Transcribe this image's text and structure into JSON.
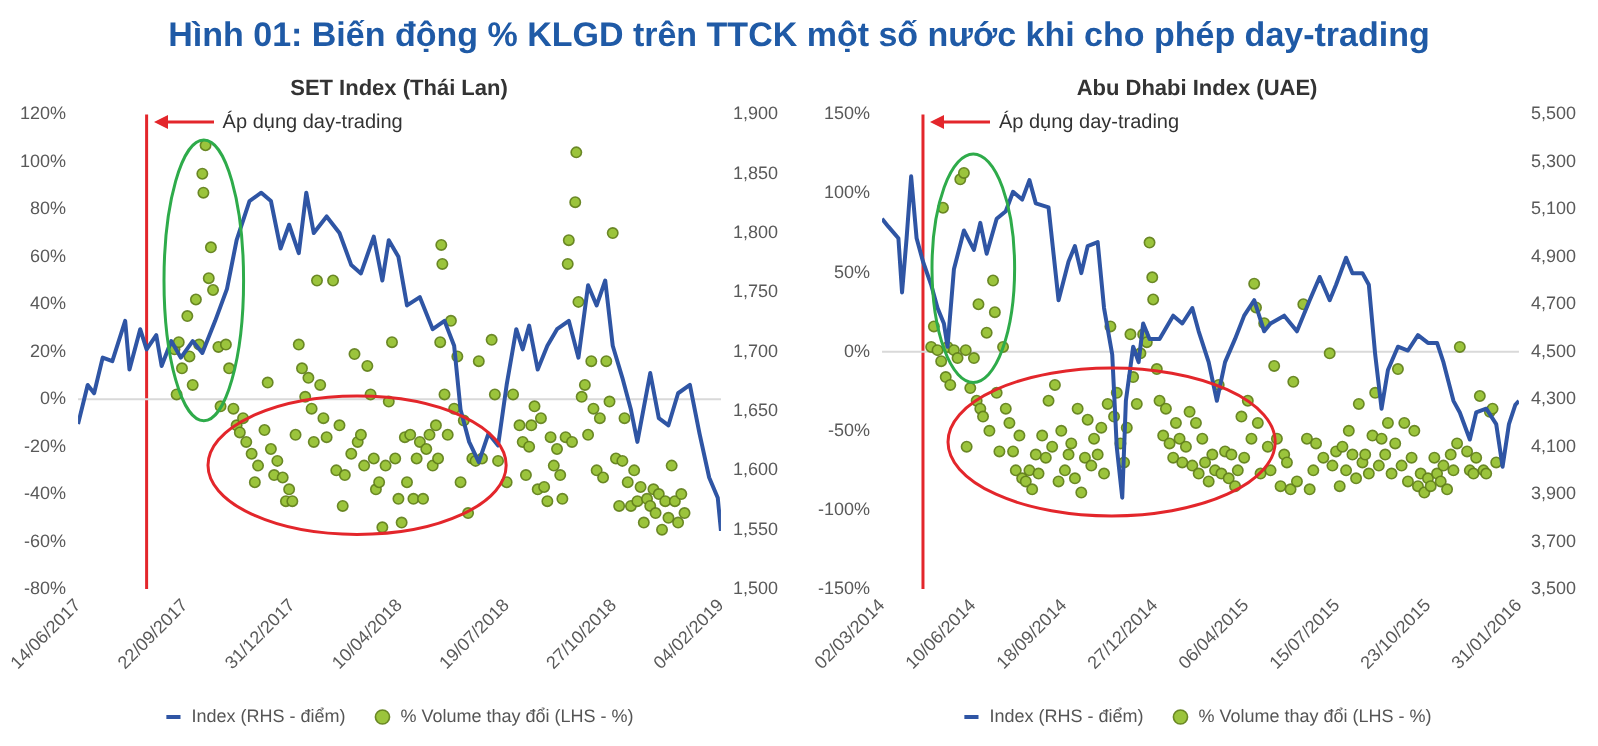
{
  "chart_data": [
    {
      "type": "other",
      "title": "Hình 01: Biến động % KLGD trên TTCK một số nước khi cho phép day-trading"
    },
    {
      "type": "line",
      "title": "SET Index (Thái Lan)",
      "legend": "bottom",
      "grid": false,
      "xlim": [
        "2017-06-14",
        "2019-02-04"
      ],
      "xticks": [
        {
          "value": "2017-06-14",
          "label": "14/06/2017"
        },
        {
          "value": "2017-09-22",
          "label": "22/09/2017"
        },
        {
          "value": "2017-12-31",
          "label": "31/12/2017"
        },
        {
          "value": "2018-04-10",
          "label": "10/04/2018"
        },
        {
          "value": "2018-07-19",
          "label": "19/07/2018"
        },
        {
          "value": "2018-10-27",
          "label": "27/10/2018"
        },
        {
          "value": "2019-02-04",
          "label": "04/02/2019"
        }
      ],
      "ylim": [
        -80,
        120
      ],
      "yticks": [
        {
          "value": -80,
          "label": "-80%"
        },
        {
          "value": -60,
          "label": "-60%"
        },
        {
          "value": -40,
          "label": "-40%"
        },
        {
          "value": -20,
          "label": "-20%"
        },
        {
          "value": 0,
          "label": "0%"
        },
        {
          "value": 20,
          "label": "20%"
        },
        {
          "value": 40,
          "label": "40%"
        },
        {
          "value": 60,
          "label": "60%"
        },
        {
          "value": 80,
          "label": "80%"
        },
        {
          "value": 100,
          "label": "100%"
        },
        {
          "value": 120,
          "label": "120%"
        }
      ],
      "y2lim": [
        1500,
        1900
      ],
      "y2ticks": [
        {
          "value": 1500,
          "label": "1,500"
        },
        {
          "value": 1550,
          "label": "1,550"
        },
        {
          "value": 1600,
          "label": "1,600"
        },
        {
          "value": 1650,
          "label": "1,650"
        },
        {
          "value": 1700,
          "label": "1,700"
        },
        {
          "value": 1750,
          "label": "1,750"
        },
        {
          "value": 1800,
          "label": "1,800"
        },
        {
          "value": 1850,
          "label": "1,850"
        },
        {
          "value": 1900,
          "label": "1,900"
        }
      ],
      "ref_lines": [
        {
          "axis": "x",
          "value": "2017-08-17",
          "label": "Áp dụng day-trading",
          "color": "#e3262b"
        },
        {
          "axis": "y",
          "value": 0,
          "color": "#d9d9d9"
        }
      ],
      "series": [
        {
          "name": "Index (RHS - điểm)",
          "type": "line",
          "axis": "y2",
          "color": "#2f55a4",
          "marker": "none",
          "x": [
            "2017-06-14",
            "2017-06-23",
            "2017-06-29",
            "2017-07-07",
            "2017-07-16",
            "2017-07-28",
            "2017-08-01",
            "2017-08-11",
            "2017-08-17",
            "2017-08-26",
            "2017-08-31",
            "2017-09-09",
            "2017-09-18",
            "2017-09-29",
            "2017-10-08",
            "2017-10-20",
            "2017-10-31",
            "2017-11-09",
            "2017-11-21",
            "2017-12-02",
            "2017-12-11",
            "2017-12-20",
            "2017-12-28",
            "2018-01-06",
            "2018-01-13",
            "2018-01-20",
            "2018-02-01",
            "2018-02-13",
            "2018-02-24",
            "2018-03-05",
            "2018-03-17",
            "2018-03-25",
            "2018-03-31",
            "2018-04-09",
            "2018-04-17",
            "2018-04-29",
            "2018-05-11",
            "2018-05-22",
            "2018-05-31",
            "2018-06-06",
            "2018-06-14",
            "2018-06-23",
            "2018-07-02",
            "2018-07-11",
            "2018-07-19",
            "2018-07-28",
            "2018-08-03",
            "2018-08-09",
            "2018-08-17",
            "2018-08-26",
            "2018-09-04",
            "2018-09-15",
            "2018-09-24",
            "2018-10-03",
            "2018-10-11",
            "2018-10-19",
            "2018-10-26",
            "2018-11-04",
            "2018-11-12",
            "2018-11-18",
            "2018-11-30",
            "2018-12-08",
            "2018-12-17",
            "2018-12-26",
            "2019-01-06",
            "2019-01-15",
            "2019-01-24",
            "2019-02-01",
            "2019-02-04"
          ],
          "values": [
            1639,
            1672,
            1665,
            1695,
            1692,
            1726,
            1685,
            1719,
            1702,
            1714,
            1688,
            1709,
            1695,
            1709,
            1699,
            1726,
            1753,
            1794,
            1827,
            1834,
            1827,
            1787,
            1807,
            1783,
            1834,
            1800,
            1814,
            1800,
            1773,
            1766,
            1797,
            1760,
            1794,
            1780,
            1739,
            1746,
            1719,
            1726,
            1705,
            1651,
            1624,
            1607,
            1631,
            1621,
            1672,
            1719,
            1702,
            1722,
            1685,
            1705,
            1719,
            1726,
            1695,
            1756,
            1739,
            1760,
            1705,
            1678,
            1651,
            1624,
            1682,
            1644,
            1638,
            1665,
            1672,
            1631,
            1594,
            1577,
            1549
          ]
        },
        {
          "name": "% Volume thay đổi (LHS - %)",
          "type": "scatter",
          "axis": "y",
          "color": "#9bc43c",
          "marker": "circle",
          "x": [
            "2017-09-12",
            "2017-09-14",
            "2017-09-16",
            "2017-09-19",
            "2017-09-24",
            "2017-09-26",
            "2017-09-29",
            "2017-10-02",
            "2017-10-05",
            "2017-10-08",
            "2017-10-09",
            "2017-10-11",
            "2017-10-14",
            "2017-10-16",
            "2017-10-18",
            "2017-10-23",
            "2017-10-25",
            "2017-10-30",
            "2017-11-02",
            "2017-11-06",
            "2017-11-09",
            "2017-11-12",
            "2017-11-15",
            "2017-11-18",
            "2017-11-23",
            "2017-11-26",
            "2017-11-29",
            "2017-12-05",
            "2017-12-08",
            "2017-12-11",
            "2017-12-14",
            "2017-12-17",
            "2017-12-22",
            "2017-12-25",
            "2017-12-28",
            "2017-12-31",
            "2018-01-03",
            "2018-01-06",
            "2018-01-09",
            "2018-01-12",
            "2018-01-15",
            "2018-01-18",
            "2018-01-20",
            "2018-01-23",
            "2018-01-26",
            "2018-01-29",
            "2018-02-01",
            "2018-02-07",
            "2018-02-10",
            "2018-02-13",
            "2018-02-16",
            "2018-02-18",
            "2018-02-24",
            "2018-02-27",
            "2018-03-02",
            "2018-03-05",
            "2018-03-08",
            "2018-03-11",
            "2018-03-14",
            "2018-03-17",
            "2018-03-19",
            "2018-03-22",
            "2018-03-25",
            "2018-03-28",
            "2018-03-31",
            "2018-04-03",
            "2018-04-06",
            "2018-04-09",
            "2018-04-12",
            "2018-04-15",
            "2018-04-17",
            "2018-04-20",
            "2018-04-23",
            "2018-04-26",
            "2018-04-29",
            "2018-05-02",
            "2018-05-05",
            "2018-05-08",
            "2018-05-11",
            "2018-05-14",
            "2018-05-16",
            "2018-05-18",
            "2018-05-19",
            "2018-05-20",
            "2018-05-22",
            "2018-05-25",
            "2018-05-28",
            "2018-05-31",
            "2018-06-03",
            "2018-06-06",
            "2018-06-09",
            "2018-06-13",
            "2018-06-17",
            "2018-06-20",
            "2018-06-23",
            "2018-06-26",
            "2018-07-05",
            "2018-07-08",
            "2018-07-11",
            "2018-07-19",
            "2018-07-25",
            "2018-07-31",
            "2018-08-03",
            "2018-08-06",
            "2018-08-09",
            "2018-08-11",
            "2018-08-14",
            "2018-08-17",
            "2018-08-20",
            "2018-08-23",
            "2018-08-26",
            "2018-08-29",
            "2018-09-01",
            "2018-09-04",
            "2018-09-07",
            "2018-09-09",
            "2018-09-12",
            "2018-09-14",
            "2018-09-15",
            "2018-09-18",
            "2018-09-21",
            "2018-09-22",
            "2018-09-24",
            "2018-09-27",
            "2018-09-30",
            "2018-10-03",
            "2018-10-06",
            "2018-10-08",
            "2018-10-11",
            "2018-10-14",
            "2018-10-17",
            "2018-10-20",
            "2018-10-23",
            "2018-10-26",
            "2018-10-29",
            "2018-11-01",
            "2018-11-04",
            "2018-11-06",
            "2018-11-09",
            "2018-11-12",
            "2018-11-15",
            "2018-11-18",
            "2018-11-21",
            "2018-11-24",
            "2018-11-27",
            "2018-11-30",
            "2018-12-03",
            "2018-12-05",
            "2018-12-08",
            "2018-12-11",
            "2018-12-14",
            "2018-12-17",
            "2018-12-20",
            "2018-12-23",
            "2018-12-26",
            "2018-12-29",
            "2019-01-01"
          ],
          "values": [
            21,
            2,
            24,
            13,
            35,
            18,
            6,
            42,
            23,
            95,
            87,
            107,
            51,
            64,
            46,
            22,
            -3,
            23,
            13,
            -4,
            -11,
            -14,
            -8,
            -18,
            -23,
            -35,
            -28,
            -13,
            7,
            -21,
            -32,
            -26,
            -33,
            -43,
            -38,
            -43,
            -15,
            23,
            13,
            1,
            9,
            -4,
            -18,
            50,
            6,
            -8,
            -16,
            50,
            -30,
            -11,
            -45,
            -32,
            -23,
            19,
            -18,
            -15,
            -28,
            14,
            2,
            -25,
            -38,
            -35,
            -54,
            -28,
            -1,
            24,
            -25,
            -42,
            -52,
            -16,
            -35,
            -15,
            -42,
            -25,
            -18,
            -42,
            -21,
            -15,
            -28,
            -11,
            -25,
            24,
            65,
            57,
            2,
            -15,
            33,
            -4,
            18,
            -35,
            -9,
            -48,
            -25,
            -26,
            16,
            -25,
            25,
            2,
            -26,
            -35,
            2,
            -11,
            -18,
            -32,
            -20,
            -11,
            -3,
            -38,
            -8,
            -37,
            -43,
            -16,
            -28,
            -21,
            -32,
            -42,
            -16,
            57,
            67,
            -18,
            83,
            104,
            41,
            1,
            6,
            -15,
            16,
            -4,
            -30,
            -8,
            -33,
            16,
            -1,
            70,
            -25,
            -45,
            -26,
            -8,
            -35,
            -45,
            -30,
            -43,
            -37,
            -52,
            -42,
            -45,
            -38,
            -48,
            -40,
            -55,
            -43,
            -50,
            -28,
            -43,
            -52,
            -40,
            -48
          ]
        }
      ]
    },
    {
      "type": "line",
      "title": "Abu Dhabi Index (UAE)",
      "legend": "bottom",
      "grid": false,
      "xlim": [
        "2014-03-02",
        "2016-01-31"
      ],
      "xticks": [
        {
          "value": "2014-03-02",
          "label": "02/03/2014"
        },
        {
          "value": "2014-06-10",
          "label": "10/06/2014"
        },
        {
          "value": "2014-09-18",
          "label": "18/09/2014"
        },
        {
          "value": "2014-12-27",
          "label": "27/12/2014"
        },
        {
          "value": "2015-04-06",
          "label": "06/04/2015"
        },
        {
          "value": "2015-07-15",
          "label": "15/07/2015"
        },
        {
          "value": "2015-10-23",
          "label": "23/10/2015"
        },
        {
          "value": "2016-01-31",
          "label": "31/01/2016"
        }
      ],
      "ylim": [
        -150,
        150
      ],
      "yticks": [
        {
          "value": -150,
          "label": "-150%"
        },
        {
          "value": -100,
          "label": "-100%"
        },
        {
          "value": -50,
          "label": "-50%"
        },
        {
          "value": 0,
          "label": "0%"
        },
        {
          "value": 50,
          "label": "50%"
        },
        {
          "value": 100,
          "label": "100%"
        },
        {
          "value": 150,
          "label": "150%"
        }
      ],
      "y2lim": [
        3500,
        5500
      ],
      "y2ticks": [
        {
          "value": 3500,
          "label": "3,500"
        },
        {
          "value": 3700,
          "label": "3,700"
        },
        {
          "value": 3900,
          "label": "3,900"
        },
        {
          "value": 4100,
          "label": "4,100"
        },
        {
          "value": 4300,
          "label": "4,300"
        },
        {
          "value": 4500,
          "label": "4,500"
        },
        {
          "value": 4700,
          "label": "4,700"
        },
        {
          "value": 4900,
          "label": "4,900"
        },
        {
          "value": 5100,
          "label": "5,100"
        },
        {
          "value": 5300,
          "label": "5,300"
        },
        {
          "value": 5500,
          "label": "5,500"
        }
      ],
      "ref_lines": [
        {
          "axis": "x",
          "value": "2014-04-16",
          "label": "Áp dụng day-trading",
          "color": "#e3262b"
        },
        {
          "axis": "y",
          "value": 0,
          "color": "#d9d9d9"
        }
      ],
      "series": [
        {
          "name": "Index (RHS - điểm)",
          "type": "line",
          "axis": "y2",
          "color": "#2f55a4",
          "marker": "none",
          "x": [
            "2014-03-02",
            "2014-03-09",
            "2014-03-20",
            "2014-03-24",
            "2014-03-29",
            "2014-04-03",
            "2014-04-09",
            "2014-04-16",
            "2014-04-25",
            "2014-05-02",
            "2014-05-09",
            "2014-05-13",
            "2014-05-20",
            "2014-05-31",
            "2014-06-11",
            "2014-06-18",
            "2014-06-25",
            "2014-07-06",
            "2014-07-16",
            "2014-07-24",
            "2014-08-03",
            "2014-08-11",
            "2014-08-18",
            "2014-09-01",
            "2014-09-12",
            "2014-09-23",
            "2014-09-30",
            "2014-10-07",
            "2014-10-14",
            "2014-10-25",
            "2014-11-01",
            "2014-11-10",
            "2014-11-15",
            "2014-11-21",
            "2014-11-25",
            "2014-12-03",
            "2014-12-09",
            "2014-12-14",
            "2014-12-21",
            "2015-01-01",
            "2015-01-16",
            "2015-01-26",
            "2015-02-06",
            "2015-02-13",
            "2015-02-24",
            "2015-03-05",
            "2015-03-14",
            "2015-03-25",
            "2015-04-04",
            "2015-04-15",
            "2015-04-26",
            "2015-05-03",
            "2015-05-18",
            "2015-06-01",
            "2015-06-15",
            "2015-06-26",
            "2015-07-07",
            "2015-07-14",
            "2015-07-25",
            "2015-08-01",
            "2015-08-12",
            "2015-08-19",
            "2015-08-26",
            "2015-09-02",
            "2015-09-09",
            "2015-09-20",
            "2015-10-01",
            "2015-10-12",
            "2015-10-23",
            "2015-11-02",
            "2015-11-09",
            "2015-11-20",
            "2015-11-27",
            "2015-12-08",
            "2015-12-15",
            "2015-12-26",
            "2016-01-06",
            "2016-01-13",
            "2016-01-20",
            "2016-01-27",
            "2016-01-31"
          ],
          "values": [
            5060,
            5027,
            4978,
            4750,
            4978,
            5239,
            4978,
            4880,
            4782,
            4684,
            4619,
            4521,
            4847,
            5011,
            4929,
            5043,
            4913,
            5060,
            5092,
            5174,
            5141,
            5223,
            5125,
            5108,
            4717,
            4880,
            4945,
            4831,
            4945,
            4962,
            4684,
            4488,
            4097,
            3885,
            4293,
            4521,
            4456,
            4619,
            4554,
            4554,
            4652,
            4619,
            4684,
            4586,
            4456,
            4293,
            4456,
            4554,
            4652,
            4717,
            4586,
            4619,
            4652,
            4586,
            4717,
            4815,
            4717,
            4782,
            4896,
            4831,
            4831,
            4782,
            4488,
            4260,
            4423,
            4521,
            4505,
            4570,
            4537,
            4537,
            4456,
            4293,
            4244,
            4130,
            4244,
            4260,
            4195,
            4015,
            4195,
            4276,
            4293
          ]
        },
        {
          "name": "% Volume thay đổi (LHS - %)",
          "type": "scatter",
          "axis": "y",
          "color": "#9bc43c",
          "marker": "circle",
          "x": [
            "2014-04-25",
            "2014-04-28",
            "2014-05-02",
            "2014-05-06",
            "2014-05-08",
            "2014-05-11",
            "2014-05-13",
            "2014-05-16",
            "2014-05-20",
            "2014-05-24",
            "2014-05-27",
            "2014-05-31",
            "2014-06-02",
            "2014-06-03",
            "2014-06-07",
            "2014-06-11",
            "2014-06-14",
            "2014-06-16",
            "2014-06-18",
            "2014-06-21",
            "2014-06-25",
            "2014-06-28",
            "2014-07-02",
            "2014-07-04",
            "2014-07-06",
            "2014-07-09",
            "2014-07-13",
            "2014-07-16",
            "2014-07-20",
            "2014-07-24",
            "2014-07-27",
            "2014-07-31",
            "2014-08-03",
            "2014-08-07",
            "2014-08-11",
            "2014-08-14",
            "2014-08-18",
            "2014-08-21",
            "2014-08-25",
            "2014-08-29",
            "2014-09-01",
            "2014-09-05",
            "2014-09-08",
            "2014-09-12",
            "2014-09-15",
            "2014-09-19",
            "2014-09-23",
            "2014-09-26",
            "2014-09-30",
            "2014-10-03",
            "2014-10-07",
            "2014-10-11",
            "2014-10-14",
            "2014-10-18",
            "2014-10-21",
            "2014-10-25",
            "2014-10-29",
            "2014-11-01",
            "2014-11-05",
            "2014-11-08",
            "2014-11-12",
            "2014-11-15",
            "2014-11-19",
            "2014-11-23",
            "2014-11-26",
            "2014-11-30",
            "2014-12-03",
            "2014-12-07",
            "2014-12-11",
            "2014-12-14",
            "2014-12-18",
            "2014-12-21",
            "2014-12-24",
            "2014-12-25",
            "2014-12-29",
            "2015-01-01",
            "2015-01-05",
            "2015-01-08",
            "2015-01-12",
            "2015-01-16",
            "2015-01-19",
            "2015-01-23",
            "2015-01-26",
            "2015-01-30",
            "2015-02-03",
            "2015-02-06",
            "2015-02-10",
            "2015-02-13",
            "2015-02-17",
            "2015-02-20",
            "2015-02-24",
            "2015-02-28",
            "2015-03-03",
            "2015-03-07",
            "2015-03-10",
            "2015-03-14",
            "2015-03-18",
            "2015-03-21",
            "2015-03-25",
            "2015-03-28",
            "2015-04-01",
            "2015-04-04",
            "2015-04-08",
            "2015-04-12",
            "2015-04-15",
            "2015-04-17",
            "2015-04-19",
            "2015-04-22",
            "2015-04-26",
            "2015-04-30",
            "2015-05-03",
            "2015-05-07",
            "2015-05-10",
            "2015-05-14",
            "2015-05-18",
            "2015-05-21",
            "2015-05-25",
            "2015-05-28",
            "2015-06-01",
            "2015-06-08",
            "2015-06-12",
            "2015-06-15",
            "2015-06-19",
            "2015-06-22",
            "2015-06-30",
            "2015-07-07",
            "2015-07-10",
            "2015-07-14",
            "2015-07-18",
            "2015-07-21",
            "2015-07-25",
            "2015-07-28",
            "2015-08-01",
            "2015-08-05",
            "2015-08-08",
            "2015-08-12",
            "2015-08-15",
            "2015-08-19",
            "2015-08-23",
            "2015-08-26",
            "2015-08-30",
            "2015-09-02",
            "2015-09-06",
            "2015-09-09",
            "2015-09-13",
            "2015-09-17",
            "2015-09-20",
            "2015-09-24",
            "2015-09-27",
            "2015-10-01",
            "2015-10-05",
            "2015-10-08",
            "2015-10-12",
            "2015-10-15",
            "2015-10-19",
            "2015-10-23",
            "2015-10-26",
            "2015-10-30",
            "2015-11-02",
            "2015-11-06",
            "2015-11-09",
            "2015-11-13",
            "2015-11-17",
            "2015-11-20",
            "2015-11-24",
            "2015-11-27",
            "2015-12-05",
            "2015-12-08",
            "2015-12-12",
            "2015-12-15",
            "2015-12-19",
            "2015-12-23",
            "2015-12-26",
            "2015-12-30",
            "2016-01-02",
            "2016-01-06"
          ],
          "values": [
            3,
            16,
            1,
            -6,
            91,
            -16,
            3,
            -21,
            1,
            -4,
            109,
            113,
            1,
            -60,
            -23,
            -4,
            -31,
            30,
            -36,
            -41,
            12,
            -50,
            45,
            25,
            -26,
            -63,
            3,
            -36,
            -45,
            -63,
            -75,
            -53,
            -80,
            -82,
            -75,
            -87,
            -65,
            -77,
            -53,
            -67,
            -31,
            -60,
            -21,
            -82,
            -50,
            -75,
            -65,
            -58,
            -80,
            -36,
            -89,
            -67,
            -43,
            -72,
            -55,
            -65,
            -48,
            -77,
            -33,
            16,
            -41,
            -26,
            -58,
            -70,
            -48,
            11,
            -16,
            -33,
            -1,
            11,
            6,
            69,
            47,
            33,
            -11,
            -31,
            -53,
            -36,
            -58,
            -67,
            -45,
            -55,
            -70,
            -60,
            -38,
            -72,
            -45,
            -77,
            -55,
            -70,
            -82,
            -65,
            -75,
            -21,
            -77,
            -63,
            -80,
            -65,
            -85,
            -75,
            -41,
            -67,
            -31,
            -55,
            43,
            28,
            -45,
            -77,
            18,
            -60,
            -75,
            -9,
            -55,
            -85,
            -65,
            -70,
            -87,
            -19,
            -82,
            30,
            -55,
            -87,
            -75,
            -58,
            -67,
            -1,
            -72,
            -63,
            -85,
            -60,
            -75,
            -50,
            -65,
            -80,
            -33,
            -70,
            -65,
            -77,
            -53,
            -26,
            -72,
            -55,
            -65,
            -45,
            -77,
            -58,
            -11,
            -72,
            -45,
            -82,
            -67,
            -50,
            -85,
            -77,
            -89,
            -80,
            -85,
            -67,
            -77,
            -82,
            -72,
            -87,
            -65,
            -75,
            -58,
            3,
            -63,
            -75,
            -77,
            -67,
            -28,
            -75,
            -77,
            -38,
            -36,
            -70
          ]
        }
      ]
    }
  ]
}
